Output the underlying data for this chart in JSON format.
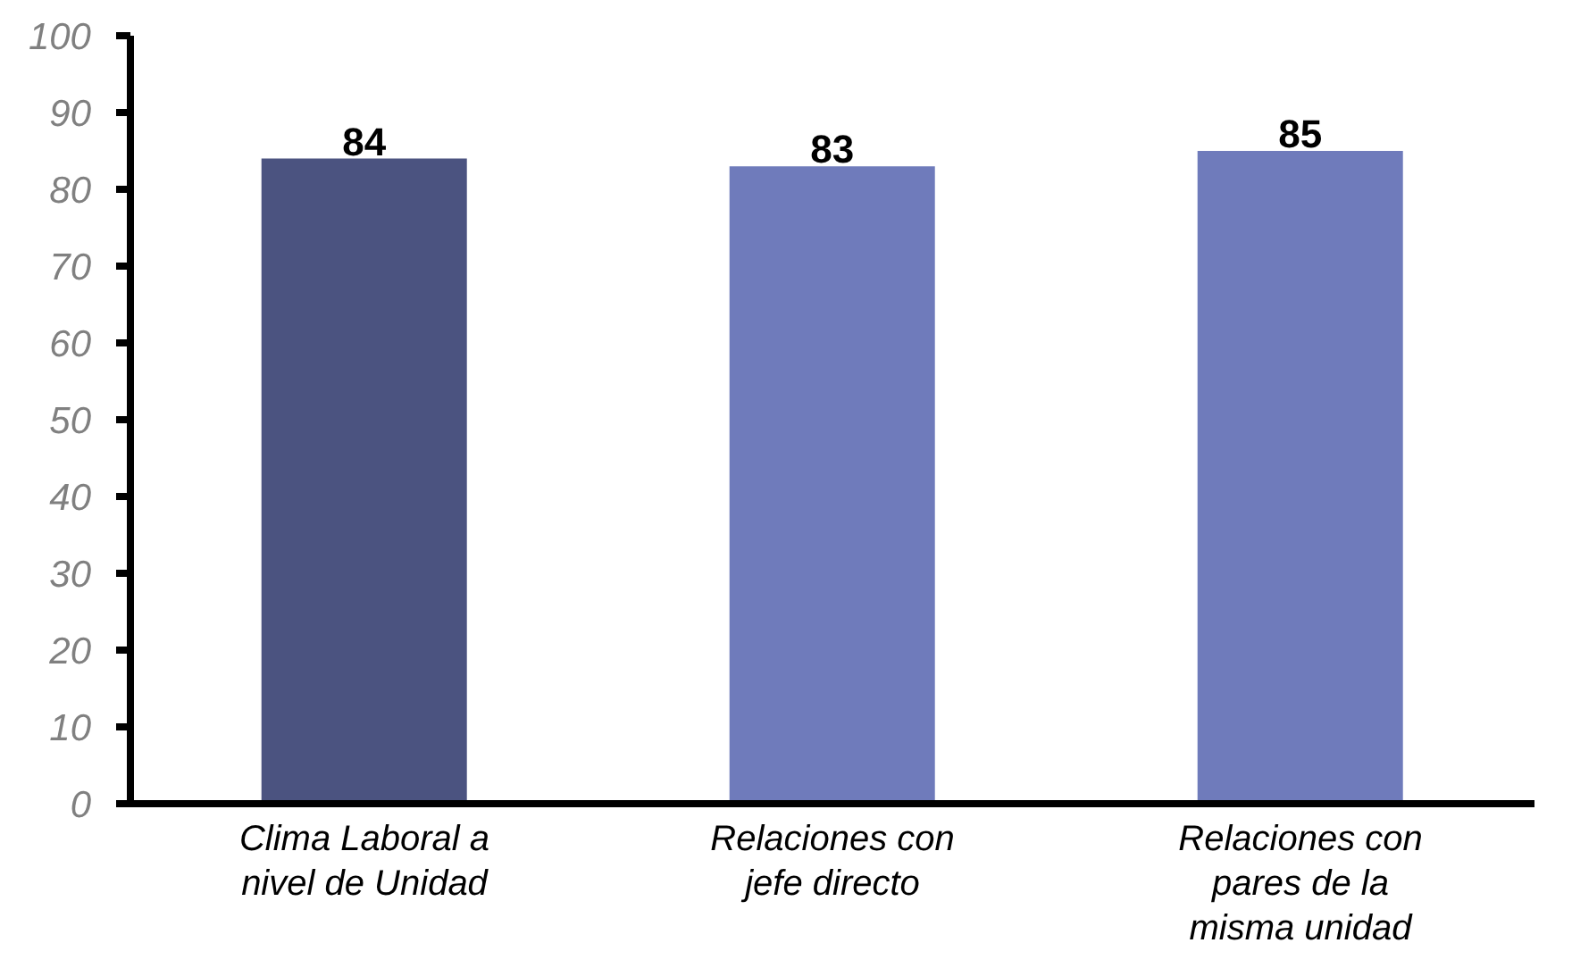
{
  "chart_data": {
    "type": "bar",
    "categories": [
      "Clima Laboral a nivel de Unidad",
      "Relaciones con jefe directo",
      "Relaciones con pares de la misma unidad"
    ],
    "values": [
      84,
      83,
      85
    ],
    "colors": [
      "#4b5380",
      "#6f7bbb",
      "#6f7bbb"
    ],
    "ylim": [
      0,
      100
    ],
    "yticks": [
      0,
      10,
      20,
      30,
      40,
      50,
      60,
      70,
      80,
      90,
      100
    ],
    "data_labels": true,
    "grid": false,
    "legend": false
  }
}
